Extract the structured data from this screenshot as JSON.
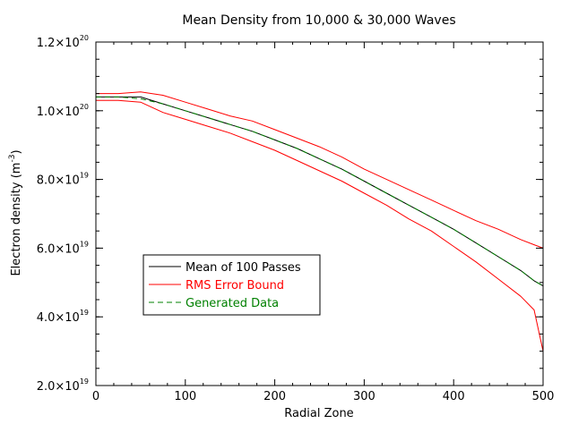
{
  "chart_data": {
    "type": "line",
    "title": "Mean Density from 10,000 & 30,000 Waves",
    "xlabel": "Radial Zone",
    "ylabel_main": "Electron density (m",
    "ylabel_exp": "-3",
    "ylabel_close": ")",
    "xlim": [
      0,
      500
    ],
    "ylim": [
      2e+19,
      1.2e+20
    ],
    "grid": false,
    "legend_placement": "lower-left",
    "x_ticks": [
      0,
      100,
      200,
      300,
      400,
      500
    ],
    "x_tick_labels": [
      "0",
      "100",
      "200",
      "300",
      "400",
      "500"
    ],
    "y_ticks": [
      {
        "value": 2e+19,
        "mantissa": "2.0×10",
        "exponent": "19"
      },
      {
        "value": 4e+19,
        "mantissa": "4.0×10",
        "exponent": "19"
      },
      {
        "value": 6e+19,
        "mantissa": "6.0×10",
        "exponent": "19"
      },
      {
        "value": 8e+19,
        "mantissa": "8.0×10",
        "exponent": "19"
      },
      {
        "value": 1e+20,
        "mantissa": "1.0×10",
        "exponent": "20"
      },
      {
        "value": 1.2e+20,
        "mantissa": "1.2×10",
        "exponent": "20"
      }
    ],
    "x": [
      0,
      25,
      50,
      75,
      100,
      125,
      150,
      175,
      200,
      225,
      250,
      275,
      300,
      325,
      350,
      375,
      400,
      425,
      450,
      475,
      490,
      500
    ],
    "series": [
      {
        "name": "Mean of 100 Passes",
        "color": "#000000",
        "dash": "solid",
        "values": [
          1.04e+20,
          1.04e+20,
          1.04e+20,
          1.02e+20,
          1e+20,
          9.8e+19,
          9.6e+19,
          9.4e+19,
          9.15e+19,
          8.9e+19,
          8.6e+19,
          8.3e+19,
          7.95e+19,
          7.6e+19,
          7.25e+19,
          6.9e+19,
          6.55e+19,
          6.15e+19,
          5.75e+19,
          5.35e+19,
          5.05e+19,
          4.9e+19
        ]
      },
      {
        "name": "RMS Error Bound",
        "color": "#ff0000",
        "dash": "solid",
        "values": [
          1.05e+20,
          1.05e+20,
          1.055e+20,
          1.045e+20,
          1.025e+20,
          1.005e+20,
          9.85e+19,
          9.7e+19,
          9.45e+19,
          9.2e+19,
          8.95e+19,
          8.65e+19,
          8.3e+19,
          8e+19,
          7.7e+19,
          7.4e+19,
          7.1e+19,
          6.8e+19,
          6.55e+19,
          6.25e+19,
          6.1e+19,
          6e+19
        ]
      },
      {
        "name": "",
        "color": "#ff0000",
        "dash": "solid",
        "values": [
          1.03e+20,
          1.03e+20,
          1.025e+20,
          9.95e+19,
          9.75e+19,
          9.55e+19,
          9.35e+19,
          9.1e+19,
          8.85e+19,
          8.55e+19,
          8.25e+19,
          7.95e+19,
          7.6e+19,
          7.25e+19,
          6.85e+19,
          6.5e+19,
          6.05e+19,
          5.6e+19,
          5.1e+19,
          4.6e+19,
          4.2e+19,
          3e+19
        ]
      },
      {
        "name": "Generated Data",
        "color": "#008000",
        "dash": "dashed",
        "values": [
          1.04e+20,
          1.04e+20,
          1.035e+20,
          1.02e+20,
          1e+20,
          9.8e+19,
          9.6e+19,
          9.4e+19,
          9.15e+19,
          8.9e+19,
          8.6e+19,
          8.3e+19,
          7.95e+19,
          7.6e+19,
          7.25e+19,
          6.9e+19,
          6.55e+19,
          6.15e+19,
          5.75e+19,
          5.35e+19,
          5.05e+19,
          4.9e+19
        ]
      }
    ],
    "legend": [
      {
        "label": "Mean of 100 Passes",
        "color": "#000000",
        "dash": "solid",
        "text_color": "#000000"
      },
      {
        "label": "RMS Error Bound",
        "color": "#ff0000",
        "dash": "solid",
        "text_color": "#ff0000"
      },
      {
        "label": "Generated Data",
        "color": "#008000",
        "dash": "dashed",
        "text_color": "#008000"
      }
    ]
  }
}
